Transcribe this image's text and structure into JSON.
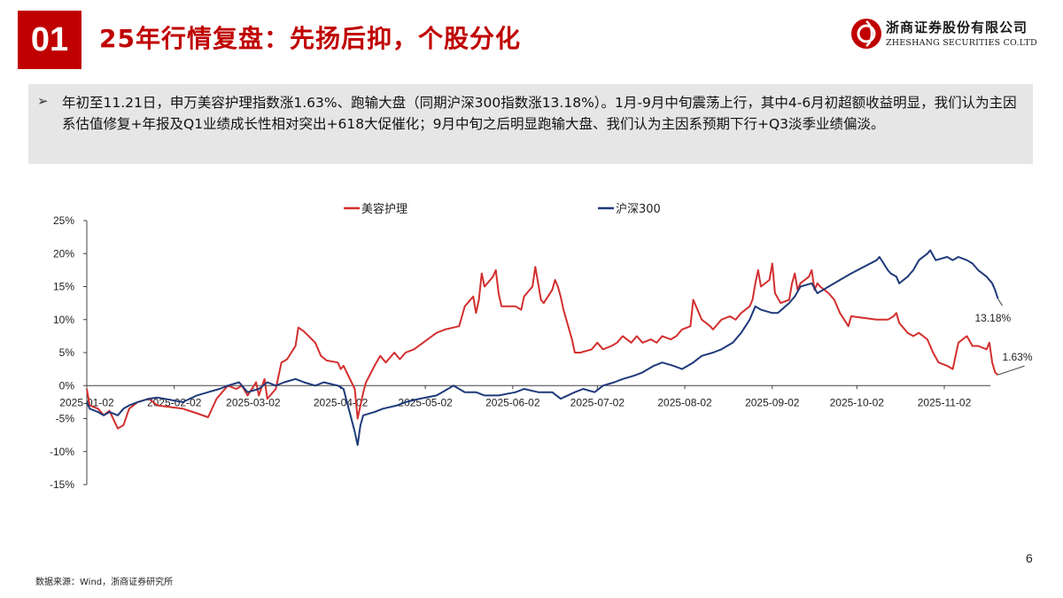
{
  "header": {
    "section_number": "01",
    "title": "25年行情复盘：先扬后抑，个股分化"
  },
  "brand": {
    "name_cn": "浙商证券股份有限公司",
    "name_en": "ZHESHANG SECURITIES CO.LTD",
    "accent_color": "#c00000"
  },
  "summary": {
    "bullet_icon": "arrow-bullet-icon",
    "text": "年初至11.21日，申万美容护理指数涨1.63%、跑输大盘（同期沪深300指数涨13.18%）。1月-9月中旬震荡上行，其中4-6月初超额收益明显，我们认为主因系估值修复+年报及Q1业绩成长性相对突出+618大促催化；9月中旬之后明显跑输大盘、我们认为主因系预期下行+Q3淡季业绩偏淡。"
  },
  "chart_data": {
    "type": "line",
    "title": "",
    "xlabel": "",
    "ylabel": "",
    "ylim": [
      -15,
      25
    ],
    "y_ticks": [
      25,
      20,
      15,
      10,
      5,
      0,
      -5,
      -10,
      -15
    ],
    "y_tick_labels": [
      "25%",
      "20%",
      "15%",
      "10%",
      "5%",
      "0%",
      "-5%",
      "-10%",
      "-15%"
    ],
    "x_ticks": [
      "2025-01-02",
      "2025-02-02",
      "2025-03-02",
      "2025-04-02",
      "2025-05-02",
      "2025-06-02",
      "2025-07-02",
      "2025-08-02",
      "2025-09-02",
      "2025-10-02",
      "2025-11-02"
    ],
    "x_range": [
      "2025-01-02",
      "2025-11-21"
    ],
    "legend_position": "top-center",
    "grid": false,
    "series": [
      {
        "name": "美容护理",
        "color": "#d32f2f",
        "end_label": "1.63%",
        "points": [
          [
            "2025-01-02",
            -0.5
          ],
          [
            "2025-01-03",
            -3.0
          ],
          [
            "2025-01-06",
            -3.5
          ],
          [
            "2025-01-08",
            -4.5
          ],
          [
            "2025-01-10",
            -3.8
          ],
          [
            "2025-01-13",
            -6.5
          ],
          [
            "2025-01-15",
            -6.0
          ],
          [
            "2025-01-17",
            -3.5
          ],
          [
            "2025-01-20",
            -2.5
          ],
          [
            "2025-01-24",
            -2.0
          ],
          [
            "2025-01-27",
            -3.0
          ],
          [
            "2025-02-05",
            -3.5
          ],
          [
            "2025-02-10",
            -4.2
          ],
          [
            "2025-02-14",
            -4.8
          ],
          [
            "2025-02-17",
            -2.0
          ],
          [
            "2025-02-19",
            -1.0
          ],
          [
            "2025-02-21",
            0.0
          ],
          [
            "2025-02-24",
            -0.5
          ],
          [
            "2025-02-26",
            0.0
          ],
          [
            "2025-02-28",
            -1.5
          ],
          [
            "2025-03-03",
            0.5
          ],
          [
            "2025-03-04",
            -1.5
          ],
          [
            "2025-03-06",
            1.0
          ],
          [
            "2025-03-07",
            -2.0
          ],
          [
            "2025-03-10",
            -0.5
          ],
          [
            "2025-03-12",
            3.5
          ],
          [
            "2025-03-14",
            4.0
          ],
          [
            "2025-03-17",
            6.0
          ],
          [
            "2025-03-18",
            8.8
          ],
          [
            "2025-03-20",
            8.2
          ],
          [
            "2025-03-24",
            6.5
          ],
          [
            "2025-03-26",
            4.5
          ],
          [
            "2025-03-28",
            3.8
          ],
          [
            "2025-04-01",
            3.5
          ],
          [
            "2025-04-02",
            2.5
          ],
          [
            "2025-04-03",
            3.0
          ],
          [
            "2025-04-07",
            -0.5
          ],
          [
            "2025-04-08",
            -5.0
          ],
          [
            "2025-04-09",
            -3.0
          ],
          [
            "2025-04-10",
            -1.0
          ],
          [
            "2025-04-11",
            0.5
          ],
          [
            "2025-04-14",
            3.0
          ],
          [
            "2025-04-16",
            4.5
          ],
          [
            "2025-04-18",
            3.5
          ],
          [
            "2025-04-21",
            5.0
          ],
          [
            "2025-04-23",
            4.0
          ],
          [
            "2025-04-25",
            5.0
          ],
          [
            "2025-04-28",
            5.5
          ],
          [
            "2025-05-06",
            8.0
          ],
          [
            "2025-05-09",
            8.5
          ],
          [
            "2025-05-12",
            8.8
          ],
          [
            "2025-05-14",
            9.0
          ],
          [
            "2025-05-15",
            10.5
          ],
          [
            "2025-05-16",
            12.0
          ],
          [
            "2025-05-19",
            13.5
          ],
          [
            "2025-05-20",
            11.0
          ],
          [
            "2025-05-21",
            13.0
          ],
          [
            "2025-05-22",
            17.0
          ],
          [
            "2025-05-23",
            15.0
          ],
          [
            "2025-05-26",
            16.5
          ],
          [
            "2025-05-27",
            17.5
          ],
          [
            "2025-05-28",
            14.0
          ],
          [
            "2025-05-29",
            12.0
          ],
          [
            "2025-06-03",
            12.0
          ],
          [
            "2025-06-05",
            11.5
          ],
          [
            "2025-06-06",
            13.5
          ],
          [
            "2025-06-09",
            15.0
          ],
          [
            "2025-06-10",
            18.0
          ],
          [
            "2025-06-11",
            15.5
          ],
          [
            "2025-06-12",
            13.0
          ],
          [
            "2025-06-13",
            12.5
          ],
          [
            "2025-06-16",
            14.5
          ],
          [
            "2025-06-17",
            16.0
          ],
          [
            "2025-06-18",
            15.0
          ],
          [
            "2025-06-19",
            13.5
          ],
          [
            "2025-06-20",
            11.5
          ],
          [
            "2025-06-23",
            7.0
          ],
          [
            "2025-06-24",
            5.0
          ],
          [
            "2025-06-26",
            5.0
          ],
          [
            "2025-06-30",
            5.5
          ],
          [
            "2025-07-02",
            6.5
          ],
          [
            "2025-07-04",
            5.5
          ],
          [
            "2025-07-07",
            6.0
          ],
          [
            "2025-07-09",
            6.5
          ],
          [
            "2025-07-11",
            7.5
          ],
          [
            "2025-07-14",
            6.5
          ],
          [
            "2025-07-16",
            7.5
          ],
          [
            "2025-07-18",
            6.5
          ],
          [
            "2025-07-21",
            7.0
          ],
          [
            "2025-07-23",
            6.5
          ],
          [
            "2025-07-25",
            7.5
          ],
          [
            "2025-07-28",
            7.0
          ],
          [
            "2025-07-30",
            7.5
          ],
          [
            "2025-08-01",
            8.5
          ],
          [
            "2025-08-04",
            9.0
          ],
          [
            "2025-08-05",
            13.0
          ],
          [
            "2025-08-06",
            12.0
          ],
          [
            "2025-08-08",
            10.0
          ],
          [
            "2025-08-11",
            9.0
          ],
          [
            "2025-08-12",
            8.5
          ],
          [
            "2025-08-13",
            9.0
          ],
          [
            "2025-08-15",
            10.0
          ],
          [
            "2025-08-18",
            10.5
          ],
          [
            "2025-08-20",
            10.0
          ],
          [
            "2025-08-22",
            11.0
          ],
          [
            "2025-08-25",
            12.0
          ],
          [
            "2025-08-26",
            13.0
          ],
          [
            "2025-08-27",
            15.5
          ],
          [
            "2025-08-28",
            17.5
          ],
          [
            "2025-08-29",
            15.0
          ],
          [
            "2025-09-01",
            16.0
          ],
          [
            "2025-09-02",
            18.5
          ],
          [
            "2025-09-03",
            14.0
          ],
          [
            "2025-09-05",
            12.5
          ],
          [
            "2025-09-08",
            13.0
          ],
          [
            "2025-09-09",
            15.5
          ],
          [
            "2025-09-10",
            17.0
          ],
          [
            "2025-09-11",
            14.5
          ],
          [
            "2025-09-12",
            15.5
          ],
          [
            "2025-09-15",
            16.5
          ],
          [
            "2025-09-16",
            17.5
          ],
          [
            "2025-09-17",
            14.5
          ],
          [
            "2025-09-18",
            15.5
          ],
          [
            "2025-09-19",
            15.0
          ],
          [
            "2025-09-22",
            14.0
          ],
          [
            "2025-09-24",
            13.0
          ],
          [
            "2025-09-26",
            11.0
          ],
          [
            "2025-09-29",
            9.0
          ],
          [
            "2025-09-30",
            10.5
          ],
          [
            "2025-10-09",
            10.0
          ],
          [
            "2025-10-13",
            10.0
          ],
          [
            "2025-10-15",
            10.5
          ],
          [
            "2025-10-16",
            11.0
          ],
          [
            "2025-10-17",
            9.5
          ],
          [
            "2025-10-20",
            8.0
          ],
          [
            "2025-10-22",
            7.5
          ],
          [
            "2025-10-24",
            8.0
          ],
          [
            "2025-10-27",
            7.0
          ],
          [
            "2025-10-29",
            5.0
          ],
          [
            "2025-10-31",
            3.5
          ],
          [
            "2025-11-03",
            3.0
          ],
          [
            "2025-11-05",
            2.5
          ],
          [
            "2025-11-07",
            6.5
          ],
          [
            "2025-11-10",
            7.5
          ],
          [
            "2025-11-12",
            6.0
          ],
          [
            "2025-11-14",
            6.0
          ],
          [
            "2025-11-17",
            5.5
          ],
          [
            "2025-11-18",
            6.5
          ],
          [
            "2025-11-19",
            3.5
          ],
          [
            "2025-11-20",
            2.0
          ],
          [
            "2025-11-21",
            1.63
          ]
        ]
      },
      {
        "name": "沪深300",
        "color": "#1f3a7a",
        "end_label": "13.18%",
        "points": [
          [
            "2025-01-02",
            -2.5
          ],
          [
            "2025-01-03",
            -3.5
          ],
          [
            "2025-01-06",
            -4.0
          ],
          [
            "2025-01-08",
            -4.5
          ],
          [
            "2025-01-10",
            -4.0
          ],
          [
            "2025-01-13",
            -4.5
          ],
          [
            "2025-01-15",
            -3.5
          ],
          [
            "2025-01-17",
            -3.0
          ],
          [
            "2025-01-20",
            -2.5
          ],
          [
            "2025-01-24",
            -2.0
          ],
          [
            "2025-01-27",
            -1.8
          ],
          [
            "2025-02-05",
            -2.5
          ],
          [
            "2025-02-10",
            -1.5
          ],
          [
            "2025-02-14",
            -1.0
          ],
          [
            "2025-02-18",
            -0.5
          ],
          [
            "2025-02-21",
            0.0
          ],
          [
            "2025-02-25",
            0.5
          ],
          [
            "2025-02-28",
            -1.0
          ],
          [
            "2025-03-04",
            -0.5
          ],
          [
            "2025-03-07",
            0.5
          ],
          [
            "2025-03-10",
            0.0
          ],
          [
            "2025-03-13",
            0.5
          ],
          [
            "2025-03-17",
            1.0
          ],
          [
            "2025-03-20",
            0.5
          ],
          [
            "2025-03-24",
            0.0
          ],
          [
            "2025-03-27",
            0.5
          ],
          [
            "2025-04-01",
            0.0
          ],
          [
            "2025-04-03",
            -0.5
          ],
          [
            "2025-04-07",
            -7.0
          ],
          [
            "2025-04-08",
            -9.0
          ],
          [
            "2025-04-09",
            -6.0
          ],
          [
            "2025-04-10",
            -4.5
          ],
          [
            "2025-04-14",
            -4.0
          ],
          [
            "2025-04-17",
            -3.5
          ],
          [
            "2025-04-22",
            -3.0
          ],
          [
            "2025-04-25",
            -2.5
          ],
          [
            "2025-04-30",
            -2.0
          ],
          [
            "2025-05-06",
            -1.5
          ],
          [
            "2025-05-08",
            -1.0
          ],
          [
            "2025-05-12",
            0.0
          ],
          [
            "2025-05-14",
            -0.5
          ],
          [
            "2025-05-16",
            -1.0
          ],
          [
            "2025-05-20",
            -1.0
          ],
          [
            "2025-05-23",
            -1.5
          ],
          [
            "2025-05-28",
            -1.5
          ],
          [
            "2025-06-03",
            -1.0
          ],
          [
            "2025-06-06",
            -0.5
          ],
          [
            "2025-06-11",
            -1.0
          ],
          [
            "2025-06-16",
            -1.0
          ],
          [
            "2025-06-19",
            -2.0
          ],
          [
            "2025-06-24",
            -1.0
          ],
          [
            "2025-06-27",
            -0.5
          ],
          [
            "2025-07-01",
            -1.0
          ],
          [
            "2025-07-04",
            0.0
          ],
          [
            "2025-07-08",
            0.5
          ],
          [
            "2025-07-11",
            1.0
          ],
          [
            "2025-07-15",
            1.5
          ],
          [
            "2025-07-18",
            2.0
          ],
          [
            "2025-07-22",
            3.0
          ],
          [
            "2025-07-25",
            3.5
          ],
          [
            "2025-07-29",
            3.0
          ],
          [
            "2025-08-01",
            2.5
          ],
          [
            "2025-08-05",
            3.5
          ],
          [
            "2025-08-08",
            4.5
          ],
          [
            "2025-08-12",
            5.0
          ],
          [
            "2025-08-15",
            5.5
          ],
          [
            "2025-08-19",
            6.5
          ],
          [
            "2025-08-22",
            8.0
          ],
          [
            "2025-08-25",
            10.0
          ],
          [
            "2025-08-27",
            12.0
          ],
          [
            "2025-08-29",
            11.5
          ],
          [
            "2025-09-02",
            11.0
          ],
          [
            "2025-09-04",
            11.0
          ],
          [
            "2025-09-08",
            12.5
          ],
          [
            "2025-09-10",
            13.5
          ],
          [
            "2025-09-12",
            15.0
          ],
          [
            "2025-09-16",
            15.5
          ],
          [
            "2025-09-18",
            14.0
          ],
          [
            "2025-09-22",
            15.0
          ],
          [
            "2025-09-24",
            15.5
          ],
          [
            "2025-09-26",
            16.0
          ],
          [
            "2025-09-30",
            17.0
          ],
          [
            "2025-10-09",
            19.0
          ],
          [
            "2025-10-10",
            19.5
          ],
          [
            "2025-10-13",
            17.5
          ],
          [
            "2025-10-14",
            17.0
          ],
          [
            "2025-10-16",
            16.5
          ],
          [
            "2025-10-17",
            15.5
          ],
          [
            "2025-10-20",
            16.5
          ],
          [
            "2025-10-22",
            17.5
          ],
          [
            "2025-10-24",
            19.0
          ],
          [
            "2025-10-27",
            20.0
          ],
          [
            "2025-10-28",
            20.5
          ],
          [
            "2025-10-30",
            19.0
          ],
          [
            "2025-11-03",
            19.5
          ],
          [
            "2025-11-05",
            19.0
          ],
          [
            "2025-11-07",
            19.5
          ],
          [
            "2025-11-10",
            19.0
          ],
          [
            "2025-11-12",
            18.5
          ],
          [
            "2025-11-14",
            17.5
          ],
          [
            "2025-11-17",
            16.5
          ],
          [
            "2025-11-19",
            15.5
          ],
          [
            "2025-11-20",
            14.5
          ],
          [
            "2025-11-21",
            13.18
          ]
        ]
      }
    ]
  },
  "footer": {
    "source": "数据来源：Wind，浙商证券研究所",
    "page_number": "6"
  }
}
